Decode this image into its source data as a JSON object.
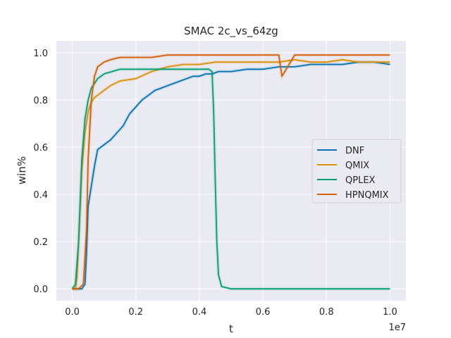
{
  "chart_data": {
    "type": "line",
    "title": "SMAC 2c_vs_64zg",
    "xlabel": "t",
    "ylabel": "win%",
    "x_offset_text": "1e7",
    "xlim": [
      -0.05,
      1.05
    ],
    "ylim": [
      -0.05,
      1.05
    ],
    "xticks": [
      0.0,
      0.2,
      0.4,
      0.6,
      0.8,
      1.0
    ],
    "xtick_labels": [
      "0.0",
      "0.2",
      "0.4",
      "0.6",
      "0.8",
      "1.0"
    ],
    "yticks": [
      0.0,
      0.2,
      0.4,
      0.6,
      0.8,
      1.0
    ],
    "ytick_labels": [
      "0.0",
      "0.2",
      "0.4",
      "0.6",
      "0.8",
      "1.0"
    ],
    "grid": true,
    "legend_position": "center-right",
    "series": [
      {
        "name": "DNF",
        "color": "#0173b2",
        "x": [
          0.0,
          0.02,
          0.03,
          0.04,
          0.045,
          0.05,
          0.07,
          0.08,
          0.09,
          0.1,
          0.12,
          0.14,
          0.16,
          0.18,
          0.2,
          0.22,
          0.24,
          0.26,
          0.28,
          0.3,
          0.32,
          0.34,
          0.36,
          0.38,
          0.4,
          0.42,
          0.44,
          0.46,
          0.5,
          0.55,
          0.6,
          0.65,
          0.7,
          0.75,
          0.8,
          0.85,
          0.9,
          0.95,
          1.0
        ],
        "y": [
          0.0,
          0.0,
          0.0,
          0.02,
          0.15,
          0.35,
          0.52,
          0.59,
          0.6,
          0.61,
          0.63,
          0.66,
          0.69,
          0.74,
          0.77,
          0.8,
          0.82,
          0.84,
          0.85,
          0.86,
          0.87,
          0.88,
          0.89,
          0.9,
          0.9,
          0.91,
          0.91,
          0.92,
          0.92,
          0.93,
          0.93,
          0.94,
          0.94,
          0.95,
          0.95,
          0.95,
          0.96,
          0.96,
          0.95
        ]
      },
      {
        "name": "QMIX",
        "color": "#de8f05",
        "x": [
          0.0,
          0.01,
          0.015,
          0.02,
          0.03,
          0.04,
          0.05,
          0.06,
          0.07,
          0.08,
          0.1,
          0.12,
          0.15,
          0.2,
          0.25,
          0.3,
          0.35,
          0.4,
          0.45,
          0.5,
          0.55,
          0.6,
          0.65,
          0.7,
          0.75,
          0.8,
          0.85,
          0.9,
          0.95,
          1.0
        ],
        "y": [
          0.0,
          0.0,
          0.05,
          0.2,
          0.5,
          0.66,
          0.75,
          0.79,
          0.81,
          0.82,
          0.84,
          0.86,
          0.88,
          0.89,
          0.92,
          0.94,
          0.95,
          0.95,
          0.96,
          0.96,
          0.96,
          0.96,
          0.96,
          0.97,
          0.96,
          0.96,
          0.97,
          0.96,
          0.96,
          0.96
        ]
      },
      {
        "name": "QPLEX",
        "color": "#029e73",
        "x": [
          0.0,
          0.01,
          0.02,
          0.03,
          0.04,
          0.05,
          0.06,
          0.08,
          0.1,
          0.15,
          0.2,
          0.25,
          0.3,
          0.35,
          0.4,
          0.42,
          0.43,
          0.44,
          0.445,
          0.45,
          0.455,
          0.46,
          0.47,
          0.5,
          0.6,
          0.7,
          0.8,
          0.9,
          1.0
        ],
        "y": [
          0.0,
          0.02,
          0.2,
          0.55,
          0.72,
          0.8,
          0.85,
          0.89,
          0.91,
          0.93,
          0.93,
          0.93,
          0.93,
          0.93,
          0.93,
          0.93,
          0.93,
          0.92,
          0.75,
          0.45,
          0.2,
          0.06,
          0.01,
          0.0,
          0.0,
          0.0,
          0.0,
          0.0,
          0.0
        ]
      },
      {
        "name": "HPNQMIX",
        "color": "#d55e00",
        "x": [
          0.0,
          0.02,
          0.035,
          0.045,
          0.05,
          0.06,
          0.07,
          0.08,
          0.1,
          0.12,
          0.15,
          0.2,
          0.25,
          0.3,
          0.4,
          0.5,
          0.6,
          0.65,
          0.66,
          0.7,
          0.8,
          0.9,
          1.0
        ],
        "y": [
          0.0,
          0.0,
          0.02,
          0.25,
          0.55,
          0.8,
          0.9,
          0.94,
          0.96,
          0.97,
          0.98,
          0.98,
          0.98,
          0.99,
          0.99,
          0.99,
          0.99,
          0.99,
          0.9,
          0.99,
          0.99,
          0.99,
          0.99
        ]
      }
    ]
  }
}
